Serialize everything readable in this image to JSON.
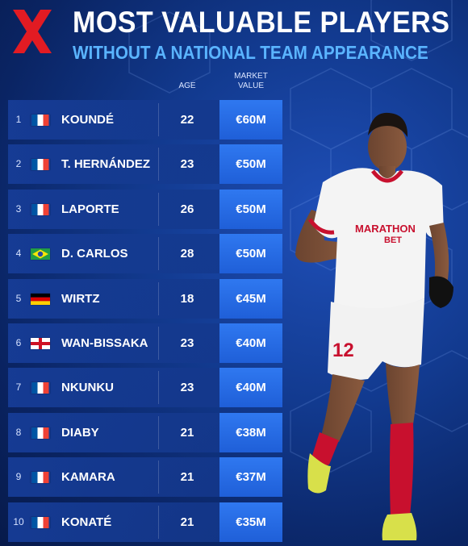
{
  "header": {
    "title": "MOST VALUABLE PLAYERS",
    "subtitle": "WITHOUT A NATIONAL TEAM APPEARANCE"
  },
  "columns": {
    "age": "AGE",
    "market_value_line1": "MARKET",
    "market_value_line2": "VALUE"
  },
  "player_image": {
    "sponsor_line1": "MARATHON",
    "sponsor_line2": "BET",
    "shirt_number": "12"
  },
  "colors": {
    "logo_red": "#e21b23",
    "subtitle_blue": "#5ab4ff",
    "value_cell_blue": "#2f78f0",
    "row_band_blue": "#163c96"
  },
  "players": [
    {
      "rank": "1",
      "flag": "france-flag",
      "name": "KOUNDÉ",
      "age": "22",
      "value": "€60M"
    },
    {
      "rank": "2",
      "flag": "france-flag",
      "name": "T. HERNÁNDEZ",
      "age": "23",
      "value": "€50M"
    },
    {
      "rank": "3",
      "flag": "france-flag",
      "name": "LAPORTE",
      "age": "26",
      "value": "€50M"
    },
    {
      "rank": "4",
      "flag": "brazil-flag",
      "name": "D. CARLOS",
      "age": "28",
      "value": "€50M"
    },
    {
      "rank": "5",
      "flag": "germany-flag",
      "name": "WIRTZ",
      "age": "18",
      "value": "€45M"
    },
    {
      "rank": "6",
      "flag": "england-flag",
      "name": "WAN-BISSAKA",
      "age": "23",
      "value": "€40M"
    },
    {
      "rank": "7",
      "flag": "france-flag",
      "name": "NKUNKU",
      "age": "23",
      "value": "€40M"
    },
    {
      "rank": "8",
      "flag": "france-flag",
      "name": "DIABY",
      "age": "21",
      "value": "€38M"
    },
    {
      "rank": "9",
      "flag": "france-flag",
      "name": "KAMARA",
      "age": "21",
      "value": "€37M"
    },
    {
      "rank": "10",
      "flag": "france-flag",
      "name": "KONATÉ",
      "age": "21",
      "value": "€35M"
    }
  ]
}
